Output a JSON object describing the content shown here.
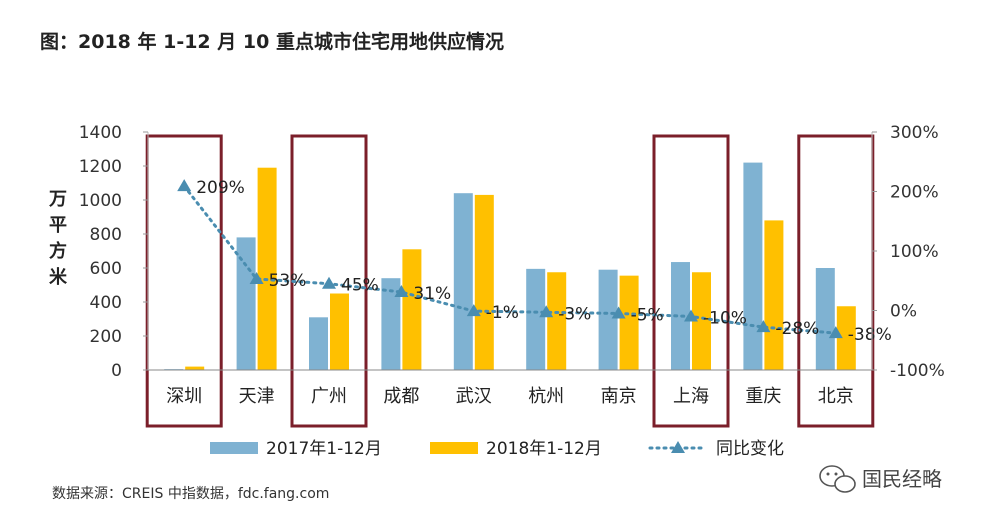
{
  "chart_data": {
    "type": "bar",
    "title": "图：2018 年 1-12 月 10 重点城市住宅用地供应情况",
    "ylabel": "万平方米",
    "categories": [
      "深圳",
      "天津",
      "广州",
      "成都",
      "武汉",
      "杭州",
      "南京",
      "上海",
      "重庆",
      "北京"
    ],
    "ylim": [
      0,
      1400
    ],
    "yticks": [
      0,
      200,
      400,
      600,
      800,
      1000,
      1200,
      1400
    ],
    "y2lim": [
      -100,
      300
    ],
    "y2ticks": [
      "-100%",
      "0%",
      "100%",
      "200%",
      "300%"
    ],
    "y2tick_values": [
      -100,
      0,
      100,
      200,
      300
    ],
    "series": [
      {
        "name": "2017年1-12月",
        "kind": "bar",
        "color": "#7FB2D2",
        "values": [
          5,
          780,
          310,
          540,
          1040,
          595,
          590,
          635,
          1220,
          600
        ]
      },
      {
        "name": "2018年1-12月",
        "kind": "bar",
        "color": "#FFC000",
        "values": [
          20,
          1190,
          450,
          710,
          1030,
          575,
          555,
          575,
          880,
          375
        ]
      },
      {
        "name": "同比变化",
        "kind": "line",
        "axis": "right",
        "color": "#4A8DB0",
        "values": [
          209,
          53,
          45,
          31,
          -1,
          -3,
          -5,
          -10,
          -28,
          -38
        ],
        "labels": [
          "209%",
          "53%",
          "45%",
          "31%",
          "-1%",
          "-3%",
          "-5%",
          "-10%",
          "-28%",
          "-38%"
        ]
      }
    ],
    "highlighted_categories": [
      "深圳",
      "广州",
      "上海",
      "北京"
    ],
    "highlight_color": "#7B1F2A",
    "legend_position": "bottom"
  },
  "source": "数据来源：CREIS 中指数据，fdc.fang.com",
  "brand": "国民经略"
}
